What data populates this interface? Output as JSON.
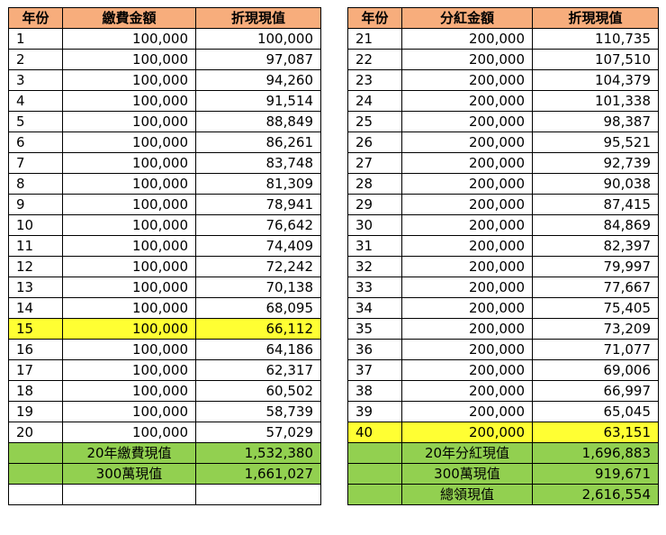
{
  "left_table": {
    "headers": [
      "年份",
      "繳費金額",
      "折現現值"
    ],
    "rows": [
      [
        "1",
        "100,000",
        "100,000"
      ],
      [
        "2",
        "100,000",
        "97,087"
      ],
      [
        "3",
        "100,000",
        "94,260"
      ],
      [
        "4",
        "100,000",
        "91,514"
      ],
      [
        "5",
        "100,000",
        "88,849"
      ],
      [
        "6",
        "100,000",
        "86,261"
      ],
      [
        "7",
        "100,000",
        "83,748"
      ],
      [
        "8",
        "100,000",
        "81,309"
      ],
      [
        "9",
        "100,000",
        "78,941"
      ],
      [
        "10",
        "100,000",
        "76,642"
      ],
      [
        "11",
        "100,000",
        "74,409"
      ],
      [
        "12",
        "100,000",
        "72,242"
      ],
      [
        "13",
        "100,000",
        "70,138"
      ],
      [
        "14",
        "100,000",
        "68,095"
      ],
      [
        "15",
        "100,000",
        "66,112"
      ],
      [
        "16",
        "100,000",
        "64,186"
      ],
      [
        "17",
        "100,000",
        "62,317"
      ],
      [
        "18",
        "100,000",
        "60,502"
      ],
      [
        "19",
        "100,000",
        "58,739"
      ],
      [
        "20",
        "100,000",
        "57,029"
      ]
    ],
    "highlight_row": 15,
    "summary": [
      {
        "label": "20年繳費現值",
        "value": "1,532,380"
      },
      {
        "label": "300萬現值",
        "value": "1,661,027"
      }
    ]
  },
  "right_table": {
    "headers": [
      "年份",
      "分紅金額",
      "折現現值"
    ],
    "rows": [
      [
        "21",
        "200,000",
        "110,735"
      ],
      [
        "22",
        "200,000",
        "107,510"
      ],
      [
        "23",
        "200,000",
        "104,379"
      ],
      [
        "24",
        "200,000",
        "101,338"
      ],
      [
        "25",
        "200,000",
        "98,387"
      ],
      [
        "26",
        "200,000",
        "95,521"
      ],
      [
        "27",
        "200,000",
        "92,739"
      ],
      [
        "28",
        "200,000",
        "90,038"
      ],
      [
        "29",
        "200,000",
        "87,415"
      ],
      [
        "30",
        "200,000",
        "84,869"
      ],
      [
        "31",
        "200,000",
        "82,397"
      ],
      [
        "32",
        "200,000",
        "79,997"
      ],
      [
        "33",
        "200,000",
        "77,667"
      ],
      [
        "34",
        "200,000",
        "75,405"
      ],
      [
        "35",
        "200,000",
        "73,209"
      ],
      [
        "36",
        "200,000",
        "71,077"
      ],
      [
        "37",
        "200,000",
        "69,006"
      ],
      [
        "38",
        "200,000",
        "66,997"
      ],
      [
        "39",
        "200,000",
        "65,045"
      ],
      [
        "40",
        "200,000",
        "63,151"
      ]
    ],
    "highlight_row": 40,
    "summary": [
      {
        "label": "20年分紅現值",
        "value": "1,696,883"
      },
      {
        "label": "300萬現值",
        "value": "919,671"
      },
      {
        "label": "總領現值",
        "value": "2,616,554"
      }
    ]
  },
  "colors": {
    "header_bg": "#f7ad7c",
    "highlight_bg": "#ffff33",
    "summary_bg": "#92d050"
  }
}
